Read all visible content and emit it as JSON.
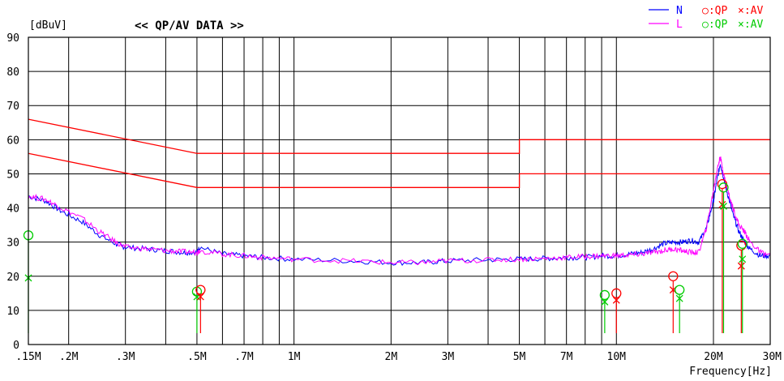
{
  "chart_data": {
    "type": "line",
    "title": "<< QP/AV DATA >>",
    "ylabel": "[dBuV]",
    "xlabel": "Frequency[Hz]",
    "x_scale": "log",
    "xlim": [
      150000,
      30000000
    ],
    "ylim": [
      0,
      90
    ],
    "y_ticks": [
      0,
      10,
      20,
      30,
      40,
      50,
      60,
      70,
      80,
      90
    ],
    "x_ticks": [
      {
        "value": 150000,
        "label": ".15M"
      },
      {
        "value": 200000,
        "label": ".2M"
      },
      {
        "value": 300000,
        "label": ".3M"
      },
      {
        "value": 500000,
        "label": ".5M"
      },
      {
        "value": 700000,
        "label": ".7M"
      },
      {
        "value": 1000000,
        "label": "1M"
      },
      {
        "value": 2000000,
        "label": "2M"
      },
      {
        "value": 3000000,
        "label": "3M"
      },
      {
        "value": 5000000,
        "label": "5M"
      },
      {
        "value": 7000000,
        "label": "7M"
      },
      {
        "value": 10000000,
        "label": "10M"
      },
      {
        "value": 20000000,
        "label": "20M"
      },
      {
        "value": 30000000,
        "label": "30M"
      }
    ],
    "grid_x_minor": [
      400000,
      600000,
      800000,
      900000,
      4000000,
      6000000,
      8000000,
      9000000
    ],
    "grid": true,
    "legend": {
      "placement": "top-right",
      "lines": [
        {
          "label": "N",
          "color": "#0000ff"
        },
        {
          "label": "L",
          "color": "#ff00ff"
        }
      ],
      "markers": [
        {
          "qp_label": "○:QP",
          "av_label": "×:AV",
          "color": "#ff0000"
        },
        {
          "qp_label": "○:QP",
          "av_label": "×:AV",
          "color": "#00cc00"
        }
      ]
    },
    "series": [
      {
        "name": "N",
        "color": "#0000ff",
        "x": [
          150000,
          170000,
          190000,
          220000,
          250000,
          280000,
          300000,
          350000,
          400000,
          450000,
          500000,
          510000,
          600000,
          700000,
          800000,
          1000000,
          1500000,
          2000000,
          2500000,
          3000000,
          4000000,
          5000000,
          6000000,
          7000000,
          8000000,
          9000000,
          10000000,
          11000000,
          12000000,
          13000000,
          14000000,
          15000000,
          16000000,
          17000000,
          18000000,
          19000000,
          20000000,
          20500000,
          21000000,
          21500000,
          22000000,
          23000000,
          24000000,
          25000000,
          26000000,
          28000000,
          30000000
        ],
        "y": [
          43.5,
          42,
          39,
          36,
          32,
          29.5,
          28.5,
          28,
          27.5,
          27,
          27,
          28.5,
          26.5,
          26,
          25.5,
          25,
          24.5,
          24,
          24,
          24.5,
          24.8,
          25,
          25.2,
          25.5,
          25.5,
          26,
          26,
          26.5,
          27,
          28,
          29.5,
          30,
          30,
          30.5,
          30,
          34,
          42,
          48,
          53,
          49,
          45,
          38,
          33,
          30,
          28,
          26,
          26
        ]
      },
      {
        "name": "L",
        "color": "#ff00ff",
        "x": [
          150000,
          170000,
          190000,
          220000,
          250000,
          280000,
          300000,
          350000,
          400000,
          450000,
          500000,
          510000,
          600000,
          700000,
          800000,
          1000000,
          1500000,
          2000000,
          2500000,
          3000000,
          4000000,
          5000000,
          6000000,
          7000000,
          8000000,
          9000000,
          10000000,
          11000000,
          12000000,
          13000000,
          14000000,
          15000000,
          16000000,
          17000000,
          18000000,
          19000000,
          20000000,
          20500000,
          21000000,
          21500000,
          22000000,
          23000000,
          24000000,
          25000000,
          26000000,
          28000000,
          30000000
        ],
        "y": [
          43.5,
          42.5,
          40,
          37,
          33,
          30,
          28.5,
          28,
          27.5,
          27.2,
          27,
          27.5,
          26.5,
          26,
          25.5,
          25,
          24.5,
          24,
          24,
          24.5,
          24.8,
          25,
          25.2,
          25.5,
          25.8,
          26,
          26,
          26.2,
          26.5,
          27,
          27.5,
          28,
          27.5,
          27,
          27,
          34,
          45,
          51,
          55,
          50,
          46,
          40,
          35,
          33,
          30,
          27,
          26
        ]
      }
    ],
    "limit_lines": [
      {
        "color": "#ff0000",
        "points": [
          [
            150000,
            66
          ],
          [
            500000,
            56
          ],
          [
            5000000,
            56
          ],
          [
            5000000,
            60
          ],
          [
            30000000,
            60
          ]
        ]
      },
      {
        "color": "#ff0000",
        "points": [
          [
            150000,
            56
          ],
          [
            500000,
            46
          ],
          [
            5000000,
            46
          ],
          [
            5000000,
            50
          ],
          [
            30000000,
            50
          ]
        ]
      }
    ],
    "qp_av_markers": [
      {
        "line": "L",
        "color": "#00cc00",
        "freq": 150000,
        "qp": 32,
        "av": 19.5
      },
      {
        "line": "L",
        "color": "#00cc00",
        "freq": 500000,
        "qp": 15.5,
        "av": 14
      },
      {
        "line": "N",
        "color": "#ff0000",
        "freq": 513000,
        "qp": 16,
        "av": 14
      },
      {
        "line": "L",
        "color": "#00cc00",
        "freq": 9200000,
        "qp": 14.5,
        "av": 12.5
      },
      {
        "line": "N",
        "color": "#ff0000",
        "freq": 10000000,
        "qp": 15,
        "av": 13
      },
      {
        "line": "N",
        "color": "#ff0000",
        "freq": 15000000,
        "qp": 20,
        "av": 16
      },
      {
        "line": "L",
        "color": "#00cc00",
        "freq": 15700000,
        "qp": 16,
        "av": 13.5
      },
      {
        "line": "N",
        "color": "#ff0000",
        "freq": 21300000,
        "qp": 47,
        "av": 41
      },
      {
        "line": "L",
        "color": "#00cc00",
        "freq": 21500000,
        "qp": 46,
        "av": 40.5
      },
      {
        "line": "N",
        "color": "#ff0000",
        "freq": 24400000,
        "qp": 29,
        "av": 23
      },
      {
        "line": "L",
        "color": "#00cc00",
        "freq": 24600000,
        "qp": 29.5,
        "av": 25
      }
    ]
  }
}
